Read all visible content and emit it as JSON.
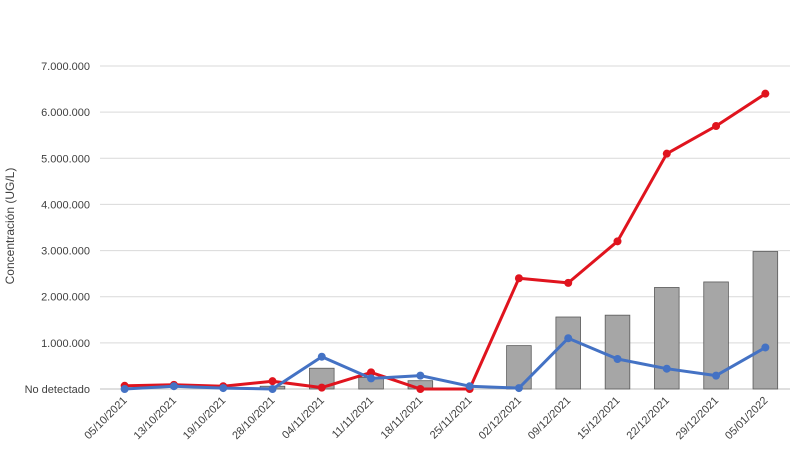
{
  "chart_data": {
    "type": "bar+line",
    "title": "",
    "ylabel": "Concentración (UG/L)",
    "xlabel": "",
    "ylim": [
      0,
      7000000
    ],
    "y_ticks": [
      0,
      1000000,
      2000000,
      3000000,
      4000000,
      5000000,
      6000000,
      7000000
    ],
    "y_tick_labels": [
      "No detectado",
      "1.000.000",
      "2.000.000",
      "3.000.000",
      "4.000.000",
      "5.000.000",
      "6.000.000",
      "7.000.000"
    ],
    "grid": "horizontal",
    "legend": "none",
    "categories": [
      "05/10/2021",
      "13/10/2021",
      "19/10/2021",
      "28/10/2021",
      "04/11/2021",
      "11/11/2021",
      "18/11/2021",
      "25/11/2021",
      "02/12/2021",
      "09/12/2021",
      "15/12/2021",
      "22/12/2021",
      "29/12/2021",
      "05/01/2022"
    ],
    "series": [
      {
        "kind": "bar",
        "color": "#a6a6a6",
        "values": [
          0,
          0,
          0,
          60000,
          450000,
          250000,
          180000,
          0,
          940000,
          1560000,
          1600000,
          2200000,
          2320000,
          2980000
        ]
      },
      {
        "kind": "line",
        "color": "#e0141e",
        "values": [
          70000,
          90000,
          60000,
          170000,
          30000,
          360000,
          0,
          0,
          2400000,
          2300000,
          3200000,
          5100000,
          5700000,
          6400000
        ]
      },
      {
        "kind": "line",
        "color": "#4472c4",
        "values": [
          0,
          60000,
          20000,
          0,
          700000,
          230000,
          290000,
          60000,
          20000,
          1100000,
          650000,
          440000,
          290000,
          900000
        ]
      }
    ]
  }
}
